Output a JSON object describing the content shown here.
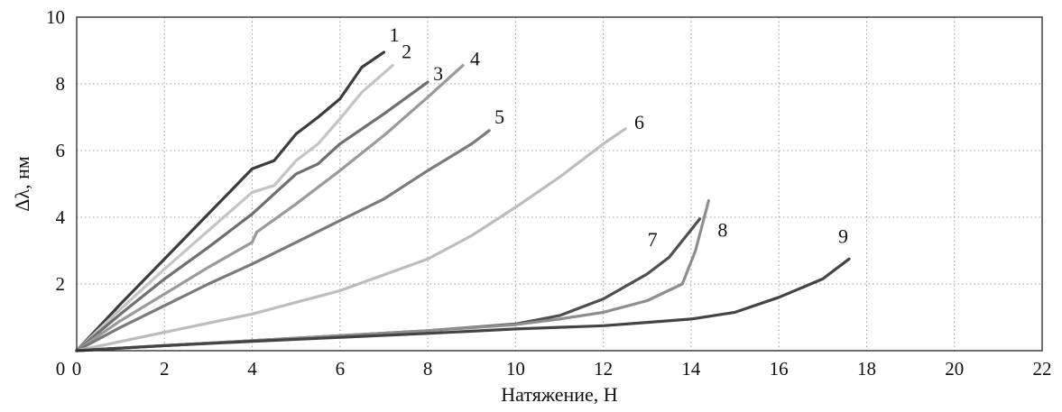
{
  "chart_data": {
    "type": "line",
    "xlabel": "Натяжение, Н",
    "ylabel": "Δλ, нм",
    "xlim": [
      0,
      22
    ],
    "ylim": [
      0,
      10
    ],
    "xticks": [
      0,
      2,
      4,
      6,
      8,
      10,
      12,
      14,
      16,
      18,
      20,
      22
    ],
    "yticks": [
      2,
      4,
      6,
      8,
      10
    ],
    "grid": true,
    "series": [
      {
        "name": "1",
        "color": "#3c3c3c",
        "x": [
          0,
          1,
          2,
          3,
          4,
          4.5,
          5,
          5.5,
          6,
          6.5,
          7.0
        ],
        "y": [
          0,
          1.4,
          2.75,
          4.1,
          5.45,
          5.7,
          6.5,
          7.0,
          7.55,
          8.5,
          8.95
        ]
      },
      {
        "name": "2",
        "color": "#c4c4c4",
        "x": [
          0,
          1,
          2,
          3,
          4,
          4.5,
          5,
          5.5,
          6,
          6.5,
          7.2
        ],
        "y": [
          0,
          1.25,
          2.45,
          3.6,
          4.75,
          4.95,
          5.7,
          6.2,
          6.95,
          7.75,
          8.55
        ]
      },
      {
        "name": "3",
        "color": "#6f6f6f",
        "x": [
          0,
          1,
          2,
          3,
          4,
          4.5,
          5,
          5.5,
          6,
          7,
          8.0
        ],
        "y": [
          0,
          1.1,
          2.15,
          3.1,
          4.1,
          4.7,
          5.3,
          5.6,
          6.2,
          7.1,
          8.05
        ]
      },
      {
        "name": "4",
        "color": "#9a9a9a",
        "x": [
          0,
          1,
          2,
          3,
          4,
          4.1,
          5,
          6,
          7,
          8,
          8.8
        ],
        "y": [
          0,
          0.9,
          1.7,
          2.5,
          3.25,
          3.55,
          4.4,
          5.4,
          6.45,
          7.6,
          8.55
        ]
      },
      {
        "name": "5",
        "color": "#7a7a7a",
        "x": [
          0,
          1,
          2,
          3,
          4,
          5,
          6,
          7,
          8,
          9,
          9.4
        ],
        "y": [
          0,
          0.7,
          1.35,
          2.0,
          2.6,
          3.25,
          3.9,
          4.55,
          5.4,
          6.2,
          6.6
        ]
      },
      {
        "name": "6",
        "color": "#bdbdbd",
        "x": [
          0,
          2,
          4,
          6,
          8,
          9,
          10,
          11,
          12,
          12.5
        ],
        "y": [
          0,
          0.55,
          1.1,
          1.8,
          2.75,
          3.45,
          4.3,
          5.2,
          6.2,
          6.65
        ]
      },
      {
        "name": "7",
        "color": "#4f4f4f",
        "x": [
          0,
          2,
          4,
          6,
          8,
          10,
          11,
          12,
          13,
          13.5,
          14.2
        ],
        "y": [
          0,
          0.15,
          0.3,
          0.45,
          0.6,
          0.8,
          1.05,
          1.55,
          2.3,
          2.8,
          3.95
        ]
      },
      {
        "name": "8",
        "color": "#8e8e8e",
        "x": [
          0,
          2,
          4,
          6,
          8,
          10,
          11,
          12,
          13,
          13.8,
          14.1,
          14.4
        ],
        "y": [
          0,
          0.15,
          0.3,
          0.45,
          0.6,
          0.78,
          0.95,
          1.15,
          1.5,
          2.0,
          3.0,
          4.5
        ]
      },
      {
        "name": "9",
        "color": "#444444",
        "x": [
          0,
          2,
          4,
          6,
          8,
          10,
          12,
          13,
          14,
          15,
          16,
          17,
          17.6
        ],
        "y": [
          0,
          0.15,
          0.28,
          0.4,
          0.52,
          0.65,
          0.75,
          0.85,
          0.95,
          1.15,
          1.6,
          2.15,
          2.75
        ]
      }
    ]
  }
}
